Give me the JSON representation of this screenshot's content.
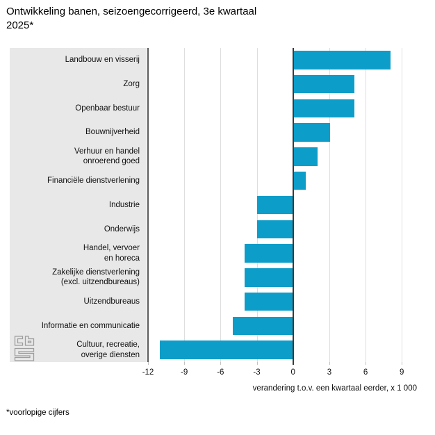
{
  "title": "Ontwikkeling banen, seizoengecorrigeerd, 3e kwartaal 2025*",
  "footnote": "*voorlopige cijfers",
  "logo_name": "cbs-logo",
  "colors": {
    "bar": "#0d9dc9",
    "panel": "#e8e8e8",
    "gridline": "#dedede",
    "zero_line": "#3a3a3a",
    "axis_line": "#5a5a5a"
  },
  "chart_data": {
    "type": "bar",
    "orientation": "horizontal",
    "title": "Ontwikkeling banen, seizoengecorrigeerd, 3e kwartaal 2025*",
    "xlabel": "verandering t.o.v. een kwartaal eerder, x 1 000",
    "ylabel": "",
    "categories": [
      "Landbouw en visserij",
      "Zorg",
      "Openbaar bestuur",
      "Bouwnijverheid",
      "Verhuur en handel\nonroerend goed",
      "Financiële dienstverlening",
      "Industrie",
      "Onderwijs",
      "Handel, vervoer\nen horeca",
      "Zakelijke dienstverlening\n(excl. uitzendbureaus)",
      "Uitzendbureaus",
      "Informatie en communicatie",
      "Cultuur, recreatie,\noverige diensten"
    ],
    "values": [
      8,
      5,
      5,
      3,
      2,
      1,
      -3,
      -3,
      -4,
      -4,
      -4,
      -5,
      -11
    ],
    "xticks": [
      -12,
      -9,
      -6,
      -3,
      0,
      3,
      6,
      9
    ],
    "xtick_labels": [
      "-12",
      "-9",
      "-6",
      "-3",
      "0",
      "3",
      "6",
      "9"
    ],
    "xlim": [
      -12,
      11.4
    ],
    "grid": true,
    "legend": false
  }
}
